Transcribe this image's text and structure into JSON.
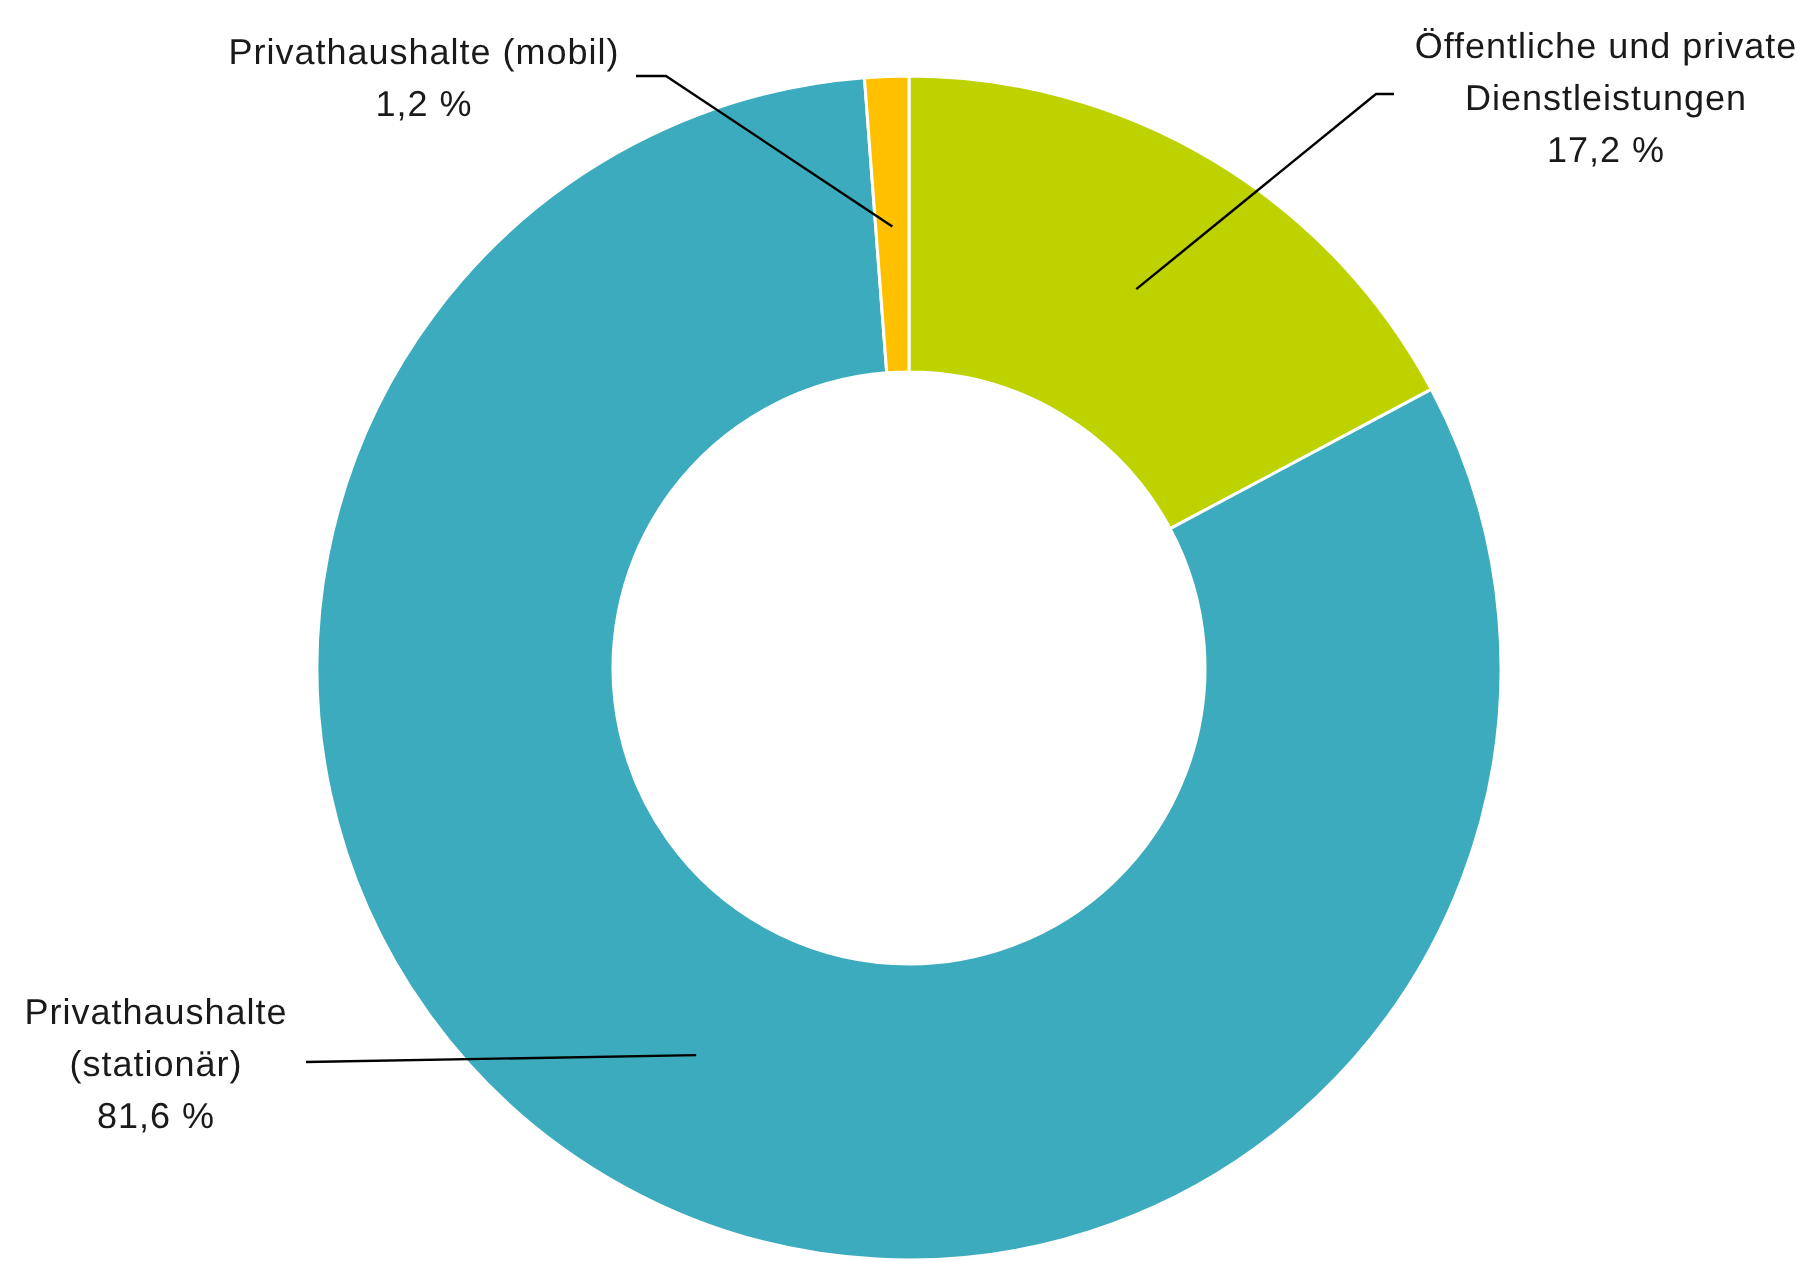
{
  "chart_data": {
    "type": "donut",
    "categories": [
      "Öffentliche und private Dienstleistungen",
      "Privathaushalte (stationär)",
      "Privathaushalte (mobil)"
    ],
    "values": [
      17.2,
      81.6,
      1.2
    ],
    "colors": [
      "#bed200",
      "#3cabbd",
      "#ffc000"
    ],
    "value_labels": [
      "17,2 %",
      "81,6 %",
      "1,2 %"
    ]
  }
}
